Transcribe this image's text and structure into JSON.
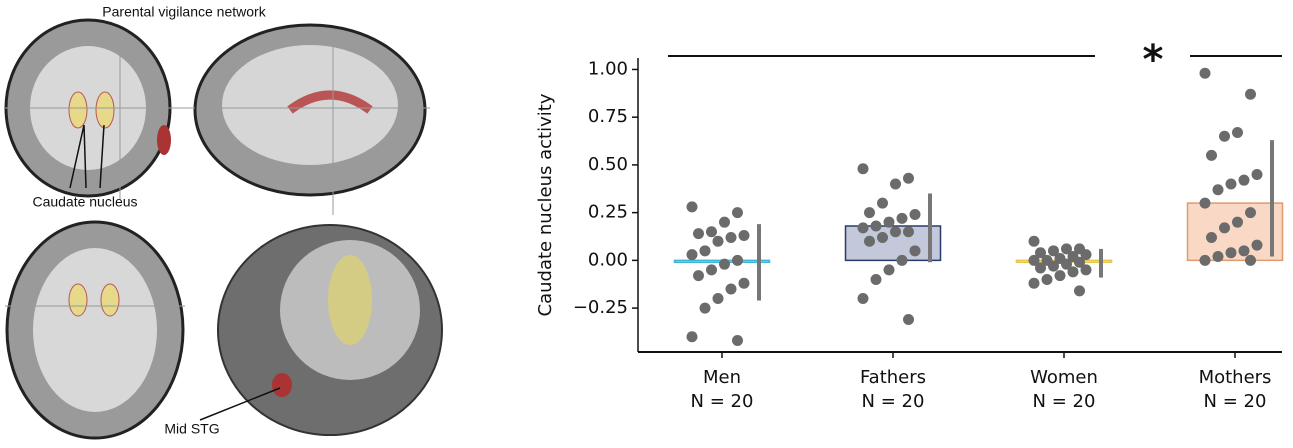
{
  "figure_labels": {
    "network_title": "Parental vigilance network",
    "caudate_label": "Caudate nucleus",
    "stg_label": "Mid STG"
  },
  "chart_data": {
    "type": "bar",
    "y_label": "Caudate nucleus activity",
    "categories": [
      "Men",
      "Fathers",
      "Women",
      "Mothers"
    ],
    "category_sublabels": [
      "N = 20",
      "N = 20",
      "N = 20",
      "N = 20"
    ],
    "values": [
      -0.01,
      0.18,
      -0.01,
      0.3
    ],
    "ci_low": [
      -0.21,
      -0.01,
      -0.09,
      0.02
    ],
    "ci_high": [
      0.19,
      0.35,
      0.06,
      0.63
    ],
    "colors": [
      "#bfe7f6",
      "#c3c8da",
      "#fdf0c2",
      "#f9d9c6"
    ],
    "edge_colors": [
      "#3db4d6",
      "#2b3a6c",
      "#e6c54c",
      "#de9b6d"
    ],
    "point_color": "#6b6b6b",
    "points": [
      [
        0.28,
        0.25,
        0.2,
        0.15,
        0.14,
        0.13,
        0.12,
        0.1,
        0.05,
        0.03,
        0.0,
        -0.02,
        -0.05,
        -0.08,
        -0.12,
        -0.15,
        -0.2,
        -0.25,
        -0.4,
        -0.42
      ],
      [
        0.48,
        0.43,
        0.4,
        0.3,
        0.25,
        0.24,
        0.22,
        0.2,
        0.18,
        0.17,
        0.15,
        0.15,
        0.12,
        0.1,
        0.05,
        0.0,
        -0.05,
        -0.1,
        -0.2,
        -0.31
      ],
      [
        0.1,
        0.06,
        0.06,
        0.05,
        0.04,
        0.03,
        0.02,
        0.01,
        0.0,
        0.0,
        -0.01,
        -0.02,
        -0.03,
        -0.04,
        -0.05,
        -0.06,
        -0.08,
        -0.1,
        -0.12,
        -0.16
      ],
      [
        0.98,
        0.87,
        0.67,
        0.65,
        0.55,
        0.45,
        0.42,
        0.4,
        0.37,
        0.3,
        0.25,
        0.2,
        0.17,
        0.12,
        0.08,
        0.05,
        0.04,
        0.02,
        0.0,
        0.0
      ]
    ],
    "significance_marker": "*",
    "ylim": [
      -0.48,
      1.06
    ],
    "yticks": [
      {
        "value": -0.25,
        "label": "−0.25"
      },
      {
        "value": 0,
        "label": "0.00"
      },
      {
        "value": 0.25,
        "label": "0.25"
      },
      {
        "value": 0.5,
        "label": "0.50"
      },
      {
        "value": 0.75,
        "label": "0.75"
      },
      {
        "value": 1,
        "label": "1.00"
      }
    ]
  }
}
